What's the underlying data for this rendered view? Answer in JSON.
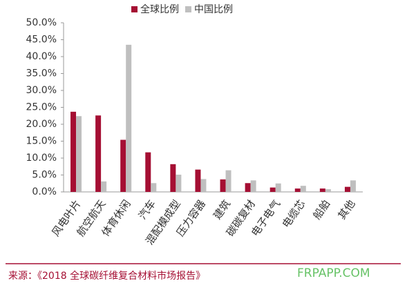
{
  "chart_data": {
    "type": "bar",
    "categories": [
      "风电叶片",
      "航空航天",
      "体育休闲",
      "汽车",
      "混配模成型",
      "压力容器",
      "建筑",
      "碳碳复材",
      "电子电气",
      "电缆芯",
      "船舶",
      "其他"
    ],
    "series": [
      {
        "name": "全球比例",
        "color": "#a50f33",
        "values": [
          23.7,
          22.6,
          15.4,
          11.7,
          8.2,
          6.6,
          3.7,
          2.6,
          1.3,
          1.0,
          1.0,
          1.5
        ]
      },
      {
        "name": "中国比例",
        "color": "#bfbfbf",
        "values": [
          22.4,
          3.1,
          43.5,
          2.6,
          5.1,
          3.8,
          6.4,
          3.4,
          2.5,
          1.8,
          0.8,
          3.4
        ]
      }
    ],
    "ylim": [
      0,
      50
    ],
    "yticks": [
      {
        "value": 0,
        "label": "0.0%"
      },
      {
        "value": 5,
        "label": "5.0%"
      },
      {
        "value": 10,
        "label": "10.0%"
      },
      {
        "value": 15,
        "label": "15.0%"
      },
      {
        "value": 20,
        "label": "20.0%"
      },
      {
        "value": 25,
        "label": "25.0%"
      },
      {
        "value": 30,
        "label": "30.0%"
      },
      {
        "value": 35,
        "label": "35.0%"
      },
      {
        "value": 40,
        "label": "40.0%"
      },
      {
        "value": 45,
        "label": "45.0%"
      },
      {
        "value": 50,
        "label": "50.0%"
      }
    ],
    "source": "来源：《2018 全球碳纤维复合材料市场报告》",
    "watermark": "FRPAPP.COM"
  }
}
